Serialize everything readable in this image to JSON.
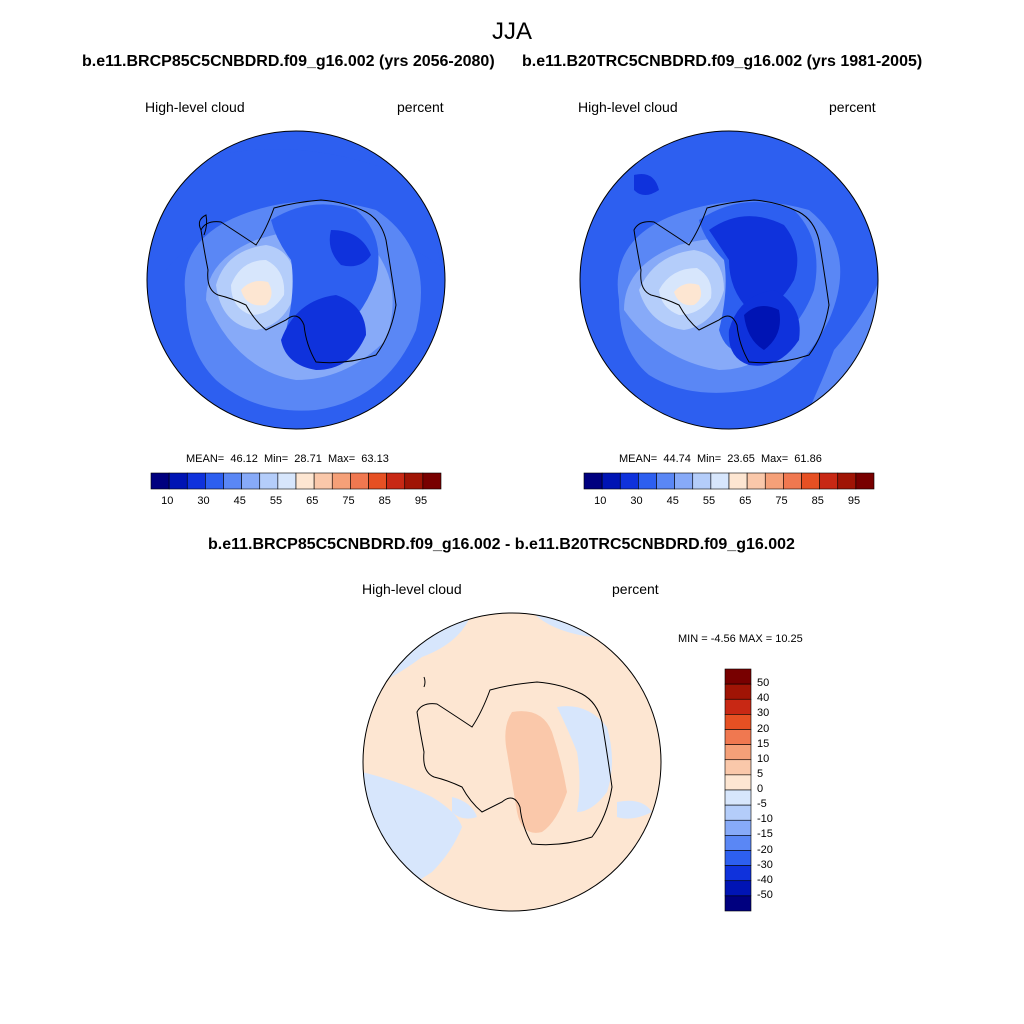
{
  "season": "JJA",
  "panels": {
    "left": {
      "title": "b.e11.BRCP85C5CNBDRD.f09_g16.002 (yrs 2056-2080)",
      "variable": "High-level cloud",
      "units": "percent",
      "stats": {
        "mean_label": "MEAN=",
        "mean": "46.12",
        "min_label": "Min=",
        "min": "28.71",
        "max_label": "Max=",
        "max": "63.13"
      }
    },
    "right": {
      "title": "b.e11.B20TRC5CNBDRD.f09_g16.002 (yrs 1981-2005)",
      "variable": "High-level cloud",
      "units": "percent",
      "stats": {
        "mean_label": "MEAN=",
        "mean": "44.74",
        "min_label": "Min=",
        "min": "23.65",
        "max_label": "Max=",
        "max": "61.86"
      }
    },
    "diff": {
      "title": "b.e11.BRCP85C5CNBDRD.f09_g16.002 - b.e11.B20TRC5CNBDRD.f09_g16.002",
      "variable": "High-level cloud",
      "units": "percent",
      "stats_text": "MIN =  -4.56 MAX =  10.25"
    }
  },
  "colorbar_abs": {
    "ticks": [
      "10",
      "30",
      "45",
      "55",
      "65",
      "75",
      "85",
      "95"
    ],
    "colors": [
      "#00007f",
      "#0014b4",
      "#0f32dc",
      "#2d5ff0",
      "#5a87f5",
      "#87aaf8",
      "#b4cdfa",
      "#d7e6fc",
      "#fde6d2",
      "#fac8aa",
      "#f5a078",
      "#f07850",
      "#e65023",
      "#c82814",
      "#a01405",
      "#780000"
    ]
  },
  "colorbar_diff": {
    "ticks": [
      "50",
      "40",
      "30",
      "20",
      "15",
      "10",
      "5",
      "0",
      "-5",
      "-10",
      "-15",
      "-20",
      "-30",
      "-40",
      "-50"
    ],
    "colors": [
      "#780000",
      "#a01405",
      "#c82814",
      "#e65023",
      "#f07850",
      "#f5a078",
      "#fac8aa",
      "#fde6d2",
      "#d7e6fc",
      "#b4cdfa",
      "#87aaf8",
      "#5a87f5",
      "#2d5ff0",
      "#0f32dc",
      "#0014b4",
      "#00007f"
    ]
  }
}
